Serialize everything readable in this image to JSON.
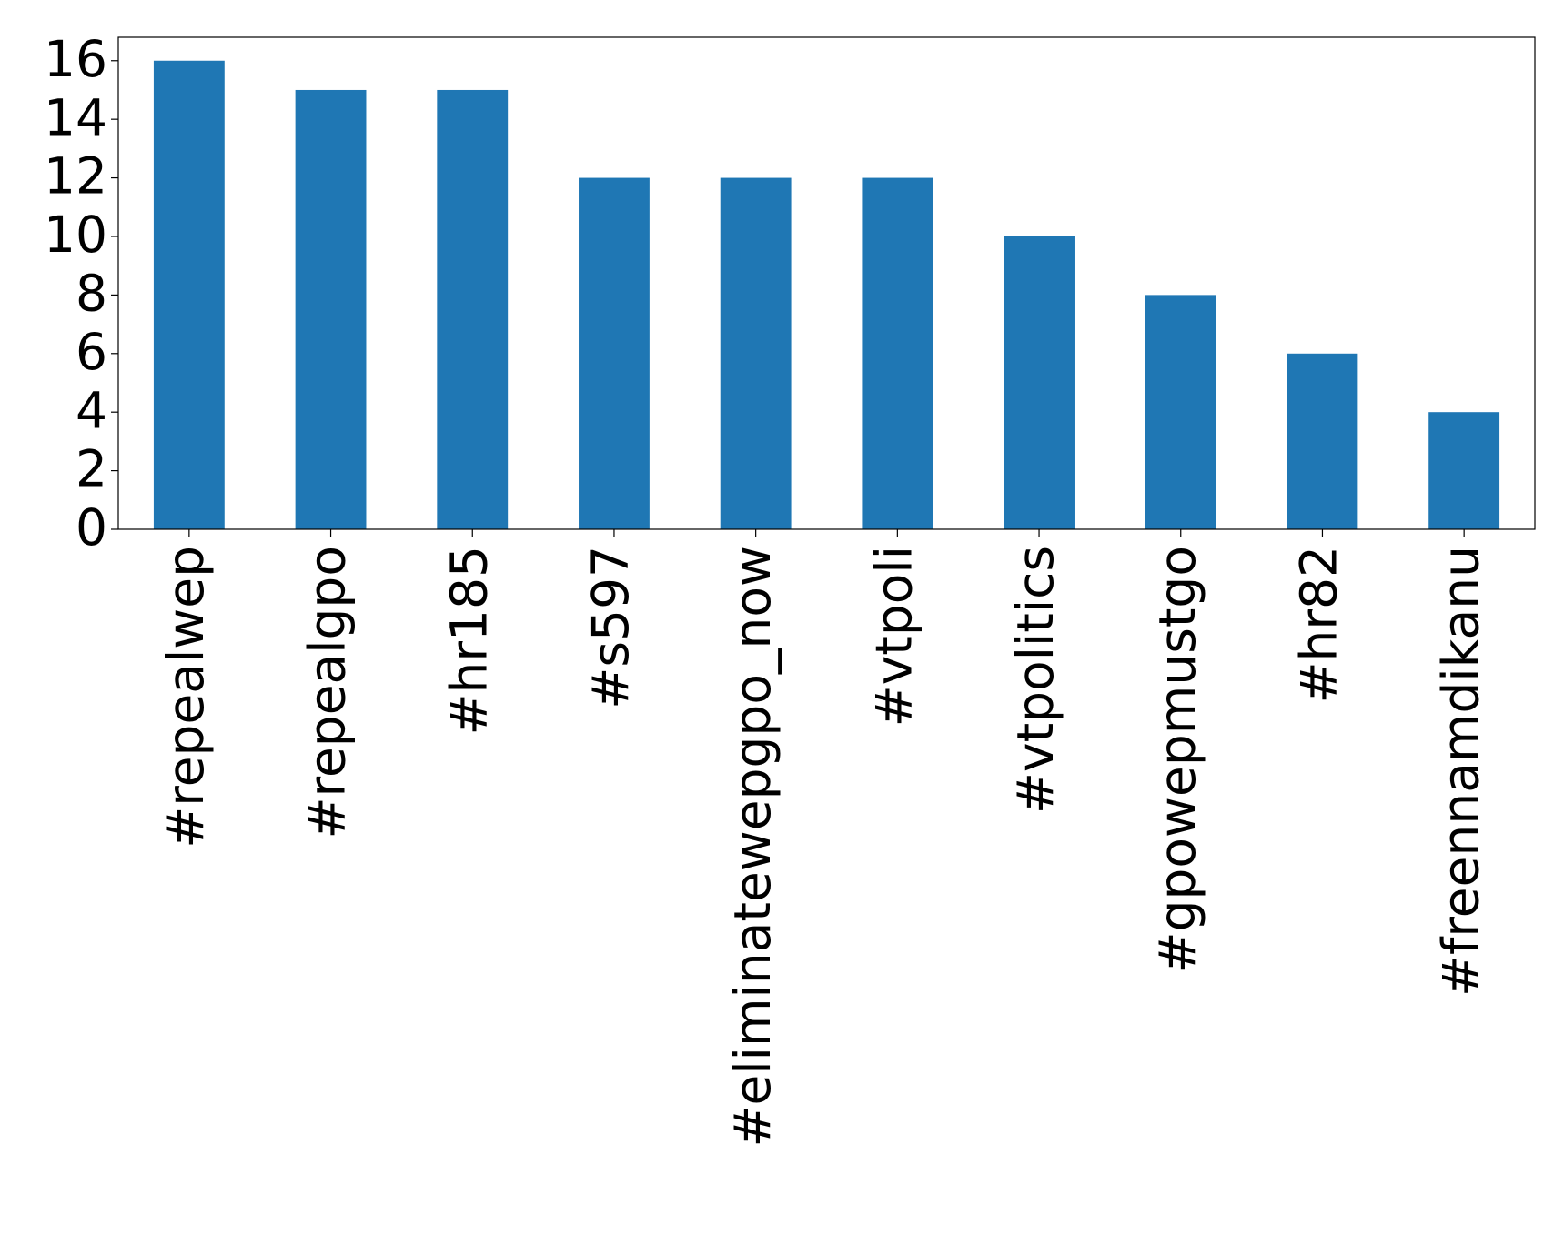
{
  "chart_data": {
    "type": "bar",
    "categories": [
      "#repealwep",
      "#repealgpo",
      "#hr185",
      "#s597",
      "#eliminatewepgpo_now",
      "#vtpoli",
      "#vtpolitics",
      "#gpowepmustgo",
      "#hr82",
      "#freennamdikanu"
    ],
    "values": [
      16,
      15,
      15,
      12,
      12,
      12,
      10,
      8,
      6,
      4
    ],
    "color": "#1f77b4",
    "ylim": [
      0,
      16.8
    ],
    "yticks": [
      0,
      2,
      4,
      6,
      8,
      10,
      12,
      14,
      16
    ],
    "grid": false
  }
}
